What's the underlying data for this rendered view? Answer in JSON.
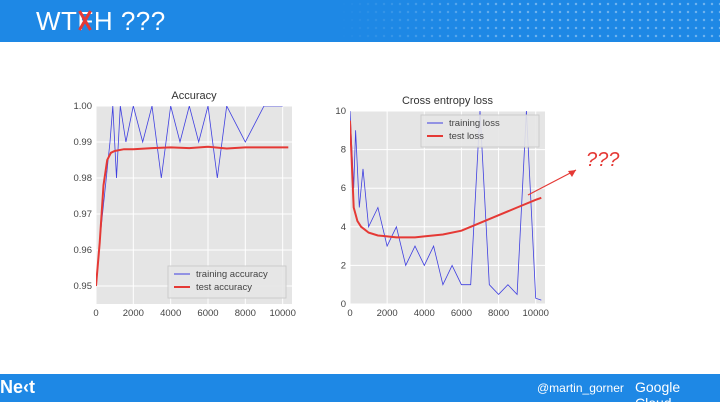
{
  "slide": {
    "title_pre": "WT",
    "title_struck": "F",
    "title_post": "H ???",
    "footer_logo": "Ne‹t",
    "footer_handle": "@martin_gorner",
    "footer_brand": "Google Cloud",
    "annotation": "???",
    "accent_color": "#1e88e5",
    "annotation_color": "#e53935"
  },
  "chart_data": [
    {
      "type": "line",
      "title": "Accuracy",
      "xlim": [
        0,
        10500
      ],
      "ylim": [
        0.945,
        1.0
      ],
      "xticks": [
        "0",
        "2000",
        "4000",
        "6000",
        "8000",
        "10000"
      ],
      "yticks": [
        "0.95",
        "0.96",
        "0.97",
        "0.98",
        "0.99",
        "1.00"
      ],
      "grid": true,
      "legend_position": "lower-right",
      "series": [
        {
          "name": "training accuracy",
          "color": "#3f3fe0",
          "x": [
            0,
            150,
            250,
            350,
            450,
            550,
            650,
            750,
            900,
            1100,
            1300,
            1600,
            2000,
            2500,
            3000,
            3500,
            4000,
            4500,
            5000,
            5500,
            6000,
            6500,
            7000,
            8000,
            9000,
            10000
          ],
          "y": [
            0.95,
            0.96,
            0.965,
            0.97,
            0.975,
            0.98,
            0.985,
            0.99,
            1.0,
            0.98,
            1.0,
            0.99,
            1.0,
            0.99,
            1.0,
            0.98,
            1.0,
            0.99,
            1.0,
            0.99,
            1.0,
            0.98,
            1.0,
            0.99,
            1.0,
            1.0
          ]
        },
        {
          "name": "test accuracy",
          "color": "#e53935",
          "x": [
            0,
            200,
            400,
            600,
            800,
            1000,
            1500,
            2000,
            3000,
            4000,
            5000,
            6000,
            7000,
            8000,
            9000,
            10000,
            10300
          ],
          "y": [
            0.95,
            0.962,
            0.978,
            0.985,
            0.987,
            0.9875,
            0.988,
            0.988,
            0.9883,
            0.9885,
            0.9883,
            0.9887,
            0.9882,
            0.9885,
            0.9885,
            0.9885,
            0.9885
          ]
        }
      ]
    },
    {
      "type": "line",
      "title": "Cross entropy loss",
      "xlim": [
        0,
        10500
      ],
      "ylim": [
        0,
        10
      ],
      "xticks": [
        "0",
        "2000",
        "4000",
        "6000",
        "8000",
        "10000"
      ],
      "yticks": [
        "0",
        "2",
        "4",
        "6",
        "8",
        "10"
      ],
      "grid": true,
      "legend_position": "upper-right",
      "series": [
        {
          "name": "training loss",
          "color": "#3f3fe0",
          "x": [
            0,
            100,
            200,
            300,
            500,
            700,
            1000,
            1500,
            2000,
            2500,
            3000,
            3500,
            4000,
            4500,
            5000,
            5500,
            6000,
            6500,
            7000,
            7500,
            8000,
            8500,
            9000,
            9500,
            10000,
            10300
          ],
          "y": [
            10,
            8,
            6,
            9,
            5,
            7,
            4,
            5,
            3,
            4,
            2,
            3,
            2,
            3,
            1,
            2,
            1,
            1,
            10,
            1,
            0.5,
            1,
            0.5,
            10,
            0.3,
            0.2
          ]
        },
        {
          "name": "test loss",
          "color": "#e53935",
          "x": [
            0,
            200,
            400,
            600,
            800,
            1000,
            1500,
            2000,
            2500,
            3000,
            3500,
            4000,
            5000,
            6000,
            7000,
            8000,
            9000,
            10000,
            10300
          ],
          "y": [
            9.5,
            5.0,
            4.3,
            4.0,
            3.85,
            3.7,
            3.55,
            3.5,
            3.45,
            3.45,
            3.45,
            3.5,
            3.6,
            3.8,
            4.2,
            4.6,
            5.0,
            5.4,
            5.5
          ]
        }
      ]
    }
  ]
}
